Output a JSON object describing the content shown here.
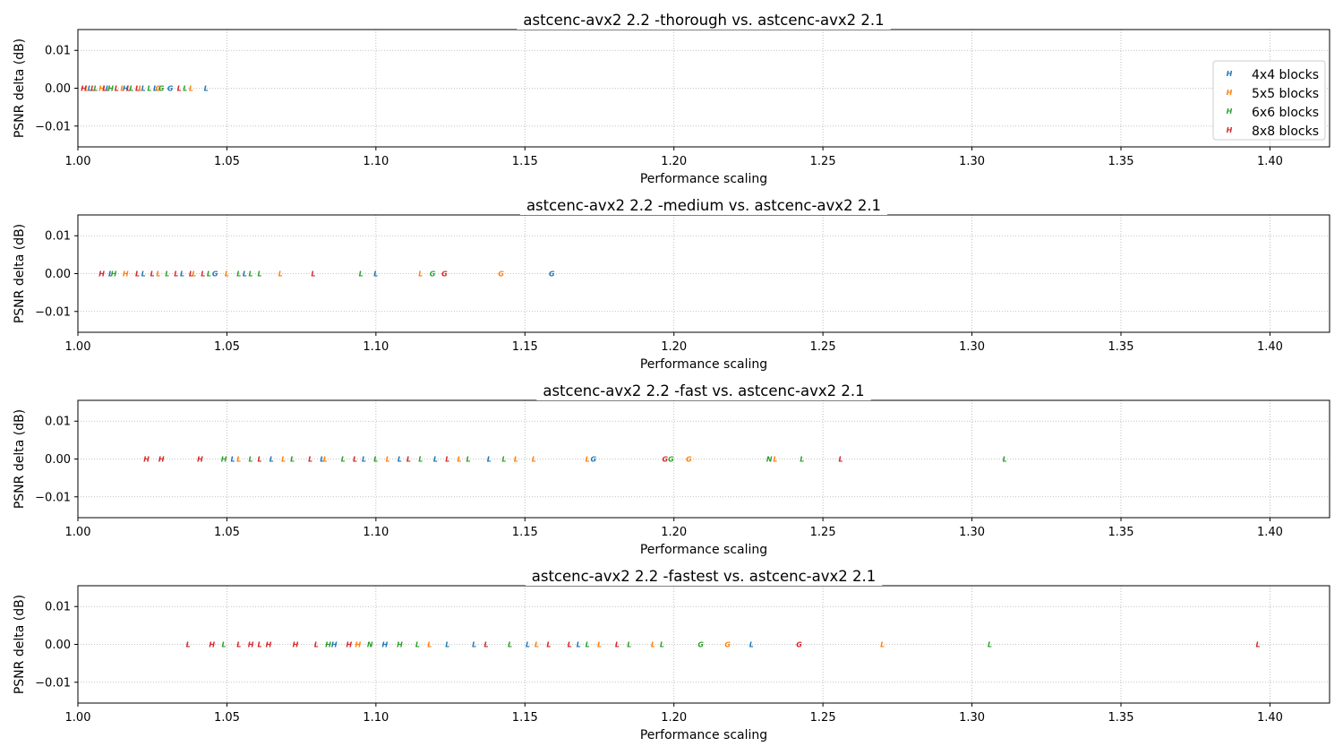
{
  "chart_data": [
    {
      "type": "scatter",
      "title": "astcenc-avx2 2.2 -thorough vs. astcenc-avx2 2.1",
      "xlabel": "Performance scaling",
      "ylabel": "PSNR delta (dB)",
      "xlim": [
        1.0,
        1.42
      ],
      "ylim": [
        -0.0155,
        0.0155
      ],
      "xticks": [
        "1.00",
        "1.05",
        "1.10",
        "1.15",
        "1.20",
        "1.25",
        "1.30",
        "1.35",
        "1.40"
      ],
      "yticks": [
        "0.01",
        "0.00",
        "−0.01"
      ],
      "grid": true,
      "legend": {
        "placement": "right",
        "entries": [
          "4x4 blocks",
          "5x5 blocks",
          "6x6 blocks",
          "8x8 blocks"
        ]
      },
      "series": [
        {
          "name": "4x4 blocks",
          "color": "#1f77b4",
          "points": [
            {
              "x": 1.004,
              "y": 0,
              "m": "L"
            },
            {
              "x": 1.01,
              "y": 0,
              "m": "L"
            },
            {
              "x": 1.016,
              "y": 0,
              "m": "H"
            },
            {
              "x": 1.022,
              "y": 0,
              "m": "L"
            },
            {
              "x": 1.026,
              "y": 0,
              "m": "L"
            },
            {
              "x": 1.031,
              "y": 0,
              "m": "G"
            },
            {
              "x": 1.043,
              "y": 0,
              "m": "L"
            }
          ]
        },
        {
          "name": "5x5 blocks",
          "color": "#ff7f0e",
          "points": [
            {
              "x": 1.003,
              "y": 0,
              "m": "L"
            },
            {
              "x": 1.008,
              "y": 0,
              "m": "H"
            },
            {
              "x": 1.015,
              "y": 0,
              "m": "L"
            },
            {
              "x": 1.021,
              "y": 0,
              "m": "L"
            },
            {
              "x": 1.027,
              "y": 0,
              "m": "G"
            },
            {
              "x": 1.038,
              "y": 0,
              "m": "L"
            }
          ]
        },
        {
          "name": "6x6 blocks",
          "color": "#2ca02c",
          "points": [
            {
              "x": 1.006,
              "y": 0,
              "m": "L"
            },
            {
              "x": 1.011,
              "y": 0,
              "m": "H"
            },
            {
              "x": 1.018,
              "y": 0,
              "m": "L"
            },
            {
              "x": 1.024,
              "y": 0,
              "m": "L"
            },
            {
              "x": 1.028,
              "y": 0,
              "m": "G"
            },
            {
              "x": 1.036,
              "y": 0,
              "m": "L"
            }
          ]
        },
        {
          "name": "8x8 blocks",
          "color": "#d62728",
          "points": [
            {
              "x": 1.002,
              "y": 0,
              "m": "H"
            },
            {
              "x": 1.005,
              "y": 0,
              "m": "L"
            },
            {
              "x": 1.009,
              "y": 0,
              "m": "L"
            },
            {
              "x": 1.013,
              "y": 0,
              "m": "L"
            },
            {
              "x": 1.017,
              "y": 0,
              "m": "L"
            },
            {
              "x": 1.02,
              "y": 0,
              "m": "L"
            },
            {
              "x": 1.034,
              "y": 0,
              "m": "L"
            }
          ]
        }
      ]
    },
    {
      "type": "scatter",
      "title": "astcenc-avx2 2.2 -medium vs. astcenc-avx2 2.1",
      "xlabel": "Performance scaling",
      "ylabel": "PSNR delta (dB)",
      "xlim": [
        1.0,
        1.42
      ],
      "ylim": [
        -0.0155,
        0.0155
      ],
      "xticks": [
        "1.00",
        "1.05",
        "1.10",
        "1.15",
        "1.20",
        "1.25",
        "1.30",
        "1.35",
        "1.40"
      ],
      "yticks": [
        "0.01",
        "0.00",
        "−0.01"
      ],
      "grid": true,
      "series": [
        {
          "name": "4x4 blocks",
          "color": "#1f77b4",
          "points": [
            {
              "x": 1.011,
              "y": 0,
              "m": "L"
            },
            {
              "x": 1.022,
              "y": 0,
              "m": "L"
            },
            {
              "x": 1.035,
              "y": 0,
              "m": "L"
            },
            {
              "x": 1.046,
              "y": 0,
              "m": "G"
            },
            {
              "x": 1.056,
              "y": 0,
              "m": "L"
            },
            {
              "x": 1.1,
              "y": 0,
              "m": "L"
            },
            {
              "x": 1.159,
              "y": 0,
              "m": "G"
            }
          ]
        },
        {
          "name": "5x5 blocks",
          "color": "#ff7f0e",
          "points": [
            {
              "x": 1.016,
              "y": 0,
              "m": "H"
            },
            {
              "x": 1.027,
              "y": 0,
              "m": "L"
            },
            {
              "x": 1.039,
              "y": 0,
              "m": "L"
            },
            {
              "x": 1.05,
              "y": 0,
              "m": "L"
            },
            {
              "x": 1.068,
              "y": 0,
              "m": "L"
            },
            {
              "x": 1.115,
              "y": 0,
              "m": "L"
            },
            {
              "x": 1.142,
              "y": 0,
              "m": "G"
            }
          ]
        },
        {
          "name": "6x6 blocks",
          "color": "#2ca02c",
          "points": [
            {
              "x": 1.012,
              "y": 0,
              "m": "H"
            },
            {
              "x": 1.03,
              "y": 0,
              "m": "L"
            },
            {
              "x": 1.044,
              "y": 0,
              "m": "L"
            },
            {
              "x": 1.054,
              "y": 0,
              "m": "L"
            },
            {
              "x": 1.058,
              "y": 0,
              "m": "L"
            },
            {
              "x": 1.061,
              "y": 0,
              "m": "L"
            },
            {
              "x": 1.095,
              "y": 0,
              "m": "L"
            },
            {
              "x": 1.119,
              "y": 0,
              "m": "G"
            }
          ]
        },
        {
          "name": "8x8 blocks",
          "color": "#d62728",
          "points": [
            {
              "x": 1.008,
              "y": 0,
              "m": "H"
            },
            {
              "x": 1.02,
              "y": 0,
              "m": "L"
            },
            {
              "x": 1.025,
              "y": 0,
              "m": "L"
            },
            {
              "x": 1.033,
              "y": 0,
              "m": "L"
            },
            {
              "x": 1.038,
              "y": 0,
              "m": "L"
            },
            {
              "x": 1.042,
              "y": 0,
              "m": "L"
            },
            {
              "x": 1.079,
              "y": 0,
              "m": "L"
            },
            {
              "x": 1.123,
              "y": 0,
              "m": "G"
            }
          ]
        }
      ]
    },
    {
      "type": "scatter",
      "title": "astcenc-avx2 2.2 -fast vs. astcenc-avx2 2.1",
      "xlabel": "Performance scaling",
      "ylabel": "PSNR delta (dB)",
      "xlim": [
        1.0,
        1.42
      ],
      "ylim": [
        -0.0155,
        0.0155
      ],
      "xticks": [
        "1.00",
        "1.05",
        "1.10",
        "1.15",
        "1.20",
        "1.25",
        "1.30",
        "1.35",
        "1.40"
      ],
      "yticks": [
        "0.01",
        "0.00",
        "−0.01"
      ],
      "grid": true,
      "series": [
        {
          "name": "4x4 blocks",
          "color": "#1f77b4",
          "points": [
            {
              "x": 1.052,
              "y": 0,
              "m": "L"
            },
            {
              "x": 1.065,
              "y": 0,
              "m": "L"
            },
            {
              "x": 1.082,
              "y": 0,
              "m": "L"
            },
            {
              "x": 1.096,
              "y": 0,
              "m": "L"
            },
            {
              "x": 1.108,
              "y": 0,
              "m": "L"
            },
            {
              "x": 1.12,
              "y": 0,
              "m": "L"
            },
            {
              "x": 1.138,
              "y": 0,
              "m": "L"
            },
            {
              "x": 1.173,
              "y": 0,
              "m": "G"
            }
          ]
        },
        {
          "name": "5x5 blocks",
          "color": "#ff7f0e",
          "points": [
            {
              "x": 1.054,
              "y": 0,
              "m": "L"
            },
            {
              "x": 1.069,
              "y": 0,
              "m": "L"
            },
            {
              "x": 1.083,
              "y": 0,
              "m": "L"
            },
            {
              "x": 1.104,
              "y": 0,
              "m": "L"
            },
            {
              "x": 1.128,
              "y": 0,
              "m": "L"
            },
            {
              "x": 1.147,
              "y": 0,
              "m": "L"
            },
            {
              "x": 1.153,
              "y": 0,
              "m": "L"
            },
            {
              "x": 1.171,
              "y": 0,
              "m": "L"
            },
            {
              "x": 1.205,
              "y": 0,
              "m": "G"
            },
            {
              "x": 1.234,
              "y": 0,
              "m": "L"
            }
          ]
        },
        {
          "name": "6x6 blocks",
          "color": "#2ca02c",
          "points": [
            {
              "x": 1.049,
              "y": 0,
              "m": "H"
            },
            {
              "x": 1.058,
              "y": 0,
              "m": "L"
            },
            {
              "x": 1.072,
              "y": 0,
              "m": "L"
            },
            {
              "x": 1.089,
              "y": 0,
              "m": "L"
            },
            {
              "x": 1.1,
              "y": 0,
              "m": "L"
            },
            {
              "x": 1.115,
              "y": 0,
              "m": "L"
            },
            {
              "x": 1.131,
              "y": 0,
              "m": "L"
            },
            {
              "x": 1.143,
              "y": 0,
              "m": "L"
            },
            {
              "x": 1.199,
              "y": 0,
              "m": "G"
            },
            {
              "x": 1.232,
              "y": 0,
              "m": "N"
            },
            {
              "x": 1.243,
              "y": 0,
              "m": "L"
            },
            {
              "x": 1.311,
              "y": 0,
              "m": "L"
            }
          ]
        },
        {
          "name": "8x8 blocks",
          "color": "#d62728",
          "points": [
            {
              "x": 1.023,
              "y": 0,
              "m": "H"
            },
            {
              "x": 1.028,
              "y": 0,
              "m": "H"
            },
            {
              "x": 1.041,
              "y": 0,
              "m": "H"
            },
            {
              "x": 1.061,
              "y": 0,
              "m": "L"
            },
            {
              "x": 1.078,
              "y": 0,
              "m": "L"
            },
            {
              "x": 1.093,
              "y": 0,
              "m": "L"
            },
            {
              "x": 1.111,
              "y": 0,
              "m": "L"
            },
            {
              "x": 1.124,
              "y": 0,
              "m": "L"
            },
            {
              "x": 1.197,
              "y": 0,
              "m": "G"
            },
            {
              "x": 1.256,
              "y": 0,
              "m": "L"
            }
          ]
        }
      ]
    },
    {
      "type": "scatter",
      "title": "astcenc-avx2 2.2 -fastest vs. astcenc-avx2 2.1",
      "xlabel": "Performance scaling",
      "ylabel": "PSNR delta (dB)",
      "xlim": [
        1.0,
        1.42
      ],
      "ylim": [
        -0.0155,
        0.0155
      ],
      "xticks": [
        "1.00",
        "1.05",
        "1.10",
        "1.15",
        "1.20",
        "1.25",
        "1.30",
        "1.35",
        "1.40"
      ],
      "yticks": [
        "0.01",
        "0.00",
        "−0.01"
      ],
      "grid": true,
      "series": [
        {
          "name": "4x4 blocks",
          "color": "#1f77b4",
          "points": [
            {
              "x": 1.086,
              "y": 0,
              "m": "H"
            },
            {
              "x": 1.103,
              "y": 0,
              "m": "H"
            },
            {
              "x": 1.124,
              "y": 0,
              "m": "L"
            },
            {
              "x": 1.133,
              "y": 0,
              "m": "L"
            },
            {
              "x": 1.151,
              "y": 0,
              "m": "L"
            },
            {
              "x": 1.168,
              "y": 0,
              "m": "L"
            },
            {
              "x": 1.226,
              "y": 0,
              "m": "L"
            }
          ]
        },
        {
          "name": "5x5 blocks",
          "color": "#ff7f0e",
          "points": [
            {
              "x": 1.094,
              "y": 0,
              "m": "H"
            },
            {
              "x": 1.118,
              "y": 0,
              "m": "L"
            },
            {
              "x": 1.154,
              "y": 0,
              "m": "L"
            },
            {
              "x": 1.175,
              "y": 0,
              "m": "L"
            },
            {
              "x": 1.193,
              "y": 0,
              "m": "L"
            },
            {
              "x": 1.218,
              "y": 0,
              "m": "G"
            },
            {
              "x": 1.27,
              "y": 0,
              "m": "L"
            }
          ]
        },
        {
          "name": "6x6 blocks",
          "color": "#2ca02c",
          "points": [
            {
              "x": 1.049,
              "y": 0,
              "m": "L"
            },
            {
              "x": 1.084,
              "y": 0,
              "m": "H"
            },
            {
              "x": 1.098,
              "y": 0,
              "m": "N"
            },
            {
              "x": 1.108,
              "y": 0,
              "m": "H"
            },
            {
              "x": 1.114,
              "y": 0,
              "m": "L"
            },
            {
              "x": 1.145,
              "y": 0,
              "m": "L"
            },
            {
              "x": 1.171,
              "y": 0,
              "m": "L"
            },
            {
              "x": 1.185,
              "y": 0,
              "m": "L"
            },
            {
              "x": 1.196,
              "y": 0,
              "m": "L"
            },
            {
              "x": 1.209,
              "y": 0,
              "m": "G"
            },
            {
              "x": 1.306,
              "y": 0,
              "m": "L"
            }
          ]
        },
        {
          "name": "8x8 blocks",
          "color": "#d62728",
          "points": [
            {
              "x": 1.037,
              "y": 0,
              "m": "L"
            },
            {
              "x": 1.045,
              "y": 0,
              "m": "H"
            },
            {
              "x": 1.054,
              "y": 0,
              "m": "L"
            },
            {
              "x": 1.058,
              "y": 0,
              "m": "H"
            },
            {
              "x": 1.061,
              "y": 0,
              "m": "L"
            },
            {
              "x": 1.064,
              "y": 0,
              "m": "H"
            },
            {
              "x": 1.073,
              "y": 0,
              "m": "H"
            },
            {
              "x": 1.08,
              "y": 0,
              "m": "L"
            },
            {
              "x": 1.091,
              "y": 0,
              "m": "H"
            },
            {
              "x": 1.137,
              "y": 0,
              "m": "L"
            },
            {
              "x": 1.158,
              "y": 0,
              "m": "L"
            },
            {
              "x": 1.165,
              "y": 0,
              "m": "L"
            },
            {
              "x": 1.181,
              "y": 0,
              "m": "L"
            },
            {
              "x": 1.242,
              "y": 0,
              "m": "G"
            },
            {
              "x": 1.396,
              "y": 0,
              "m": "L"
            }
          ]
        }
      ]
    }
  ]
}
